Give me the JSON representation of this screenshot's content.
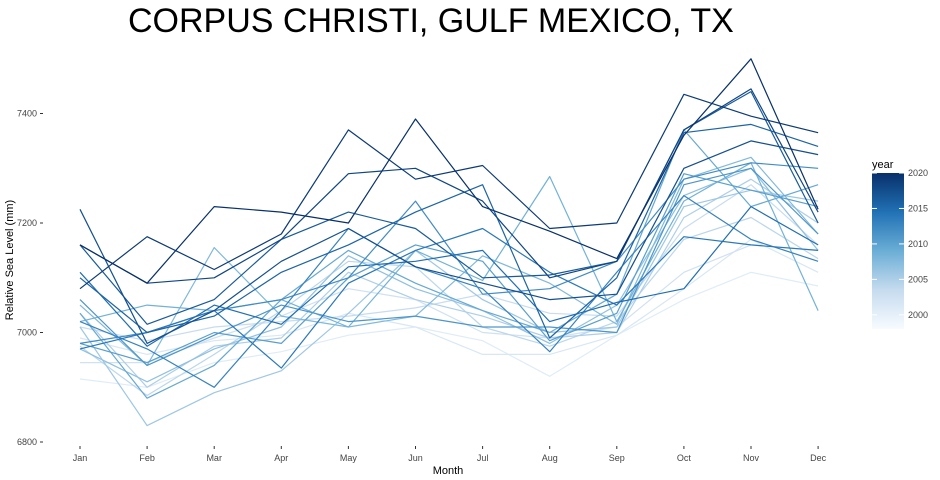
{
  "chart_data": {
    "type": "line",
    "title": "CORPUS CHRISTI, GULF MEXICO, TX",
    "xlabel": "Month",
    "ylabel": "Relative Sea Level (mm)",
    "categories": [
      "Jan",
      "Feb",
      "Mar",
      "Apr",
      "May",
      "Jun",
      "Jul",
      "Aug",
      "Sep",
      "Oct",
      "Nov",
      "Dec"
    ],
    "ylim": [
      6800,
      7480
    ],
    "yticks": [
      6800,
      7000,
      7200,
      7400
    ],
    "grid": false,
    "legend": {
      "title": "year",
      "position": "right",
      "type": "colorbar",
      "ticks": [
        2000,
        2005,
        2010,
        2015,
        2020
      ],
      "range": [
        1998,
        2020
      ],
      "color_low": "#f7fbff",
      "color_high": "#08306b"
    },
    "series": [
      {
        "year": 1998,
        "values": [
          6915,
          6900,
          6945,
          6965,
          6995,
          7010,
          6985,
          6920,
          6995,
          7060,
          7110,
          7085
        ]
      },
      {
        "year": 1999,
        "values": [
          6990,
          6960,
          6985,
          6995,
          7035,
          7010,
          6960,
          6960,
          6995,
          7080,
          7170,
          7110
        ]
      },
      {
        "year": 2000,
        "values": [
          6945,
          6945,
          6990,
          7030,
          7080,
          7060,
          7000,
          6990,
          7010,
          7110,
          7160,
          7150
        ]
      },
      {
        "year": 2001,
        "values": [
          7010,
          6985,
          7010,
          7020,
          7030,
          7045,
          7070,
          7035,
          7030,
          7190,
          7270,
          7160
        ]
      },
      {
        "year": 2002,
        "values": [
          6975,
          6885,
          6960,
          7040,
          7130,
          7120,
          7010,
          6975,
          7020,
          7170,
          7210,
          7135
        ]
      },
      {
        "year": 2003,
        "values": [
          7035,
          6900,
          6975,
          6990,
          7110,
          7060,
          7030,
          6990,
          7000,
          7210,
          7280,
          7200
        ]
      },
      {
        "year": 2004,
        "values": [
          7010,
          6830,
          6890,
          6930,
          7035,
          7150,
          7060,
          7000,
          7010,
          7230,
          7260,
          7240
        ]
      },
      {
        "year": 2005,
        "values": [
          6970,
          6910,
          6970,
          7010,
          7140,
          7080,
          7040,
          6980,
          7050,
          7250,
          7300,
          7150
        ]
      },
      {
        "year": 2006,
        "values": [
          7050,
          6940,
          7155,
          7030,
          7010,
          7030,
          7140,
          7090,
          7015,
          7280,
          7320,
          7180
        ]
      },
      {
        "year": 2007,
        "values": [
          7020,
          7050,
          7040,
          7060,
          7010,
          7150,
          7095,
          7285,
          7020,
          7240,
          7310,
          7040
        ]
      },
      {
        "year": 2008,
        "values": [
          7035,
          6880,
          6940,
          7060,
          7150,
          7090,
          7040,
          7000,
          7070,
          7370,
          7230,
          7270
        ]
      },
      {
        "year": 2009,
        "values": [
          6980,
          6945,
          7000,
          6980,
          7100,
          7160,
          7130,
          6985,
          7035,
          7290,
          7260,
          7230
        ]
      },
      {
        "year": 2010,
        "values": [
          7060,
          6940,
          6995,
          7050,
          7020,
          7030,
          7010,
          7010,
          7000,
          7270,
          7300,
          7180
        ]
      },
      {
        "year": 2011,
        "values": [
          6980,
          7000,
          7040,
          7060,
          7100,
          7240,
          7070,
          7080,
          7130,
          7280,
          7310,
          7300
        ]
      },
      {
        "year": 2012,
        "values": [
          7020,
          6970,
          6900,
          7040,
          7190,
          7120,
          7080,
          6965,
          7110,
          7250,
          7170,
          7130
        ]
      },
      {
        "year": 2013,
        "values": [
          6970,
          7000,
          7040,
          6935,
          7090,
          7150,
          7190,
          7110,
          7050,
          7175,
          7160,
          7150
        ]
      },
      {
        "year": 2014,
        "values": [
          7110,
          6975,
          7050,
          7015,
          7120,
          7130,
          7150,
          7020,
          7055,
          7080,
          7230,
          7160
        ]
      },
      {
        "year": 2015,
        "values": [
          7100,
          7000,
          7030,
          7110,
          7160,
          7220,
          7270,
          6990,
          7100,
          7365,
          7380,
          7340
        ]
      },
      {
        "year": 2016,
        "values": [
          7160,
          7015,
          7060,
          7170,
          7220,
          7190,
          7100,
          7105,
          7130,
          7370,
          7440,
          7200
        ]
      },
      {
        "year": 2017,
        "values": [
          7225,
          6980,
          7040,
          7130,
          7190,
          7120,
          7090,
          7060,
          7070,
          7300,
          7350,
          7325
        ]
      },
      {
        "year": 2018,
        "values": [
          7160,
          7090,
          7100,
          7170,
          7290,
          7300,
          7240,
          7100,
          7130,
          7370,
          7445,
          7220
        ]
      },
      {
        "year": 2019,
        "values": [
          7080,
          7175,
          7115,
          7180,
          7370,
          7280,
          7305,
          7190,
          7200,
          7435,
          7395,
          7365
        ]
      },
      {
        "year": 2020,
        "values": [
          7160,
          7090,
          7230,
          7220,
          7200,
          7390,
          7230,
          7185,
          7135,
          7360,
          7500,
          7225
        ]
      }
    ]
  }
}
